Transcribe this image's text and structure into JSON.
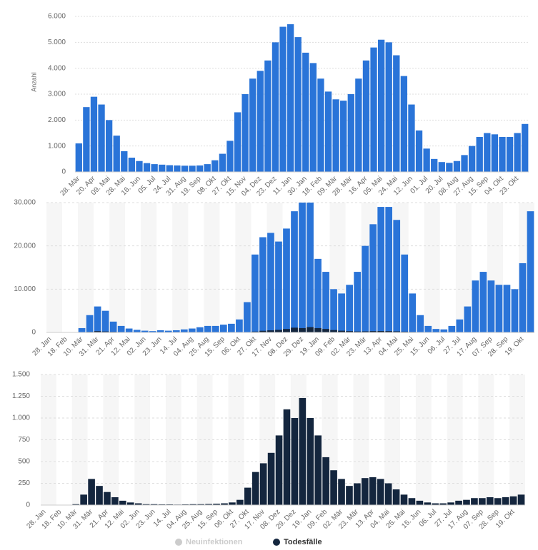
{
  "chart_data": [
    {
      "type": "bar",
      "ylabel": "Anzahl",
      "color": "#2a74d8",
      "grid": true,
      "categories": [
        "28. Mär",
        null,
        "20. Apr",
        null,
        "09. Mai",
        null,
        "28. Mai",
        null,
        "16. Jun",
        null,
        "05. Jul",
        null,
        "24. Jul",
        null,
        "31. Aug",
        null,
        "19. Sep",
        null,
        "08. Okt",
        null,
        "27. Okt",
        null,
        "15. Nov",
        null,
        "04. Dez",
        null,
        "23. Dez",
        null,
        "11. Jan",
        null,
        "30. Jan",
        null,
        "18. Feb",
        null,
        "09. Mär",
        null,
        "28. Mär",
        null,
        "16. Apr",
        null,
        "05. Mai",
        null,
        "24. Mai",
        null,
        "12. Jun",
        null,
        "01. Jul",
        null,
        "20. Jul",
        null,
        "08. Aug",
        null,
        "27. Aug",
        null,
        "15. Sep",
        null,
        "04. Okt",
        null,
        "23. Okt",
        null
      ],
      "values": [
        1100,
        2500,
        2900,
        2600,
        2000,
        1400,
        800,
        550,
        420,
        340,
        300,
        280,
        260,
        250,
        240,
        240,
        250,
        300,
        450,
        700,
        1200,
        2300,
        3000,
        3600,
        3900,
        4300,
        5000,
        5600,
        5700,
        5200,
        4600,
        4200,
        3600,
        3100,
        2800,
        2750,
        3000,
        3600,
        4300,
        4800,
        5100,
        5000,
        4500,
        3700,
        2600,
        1600,
        900,
        500,
        380,
        350,
        420,
        650,
        1000,
        1350,
        1500,
        1450,
        1350,
        1350,
        1500,
        1850
      ],
      "ylim": [
        0,
        6000
      ],
      "yticks": [
        0,
        {
          "value": 1000,
          "label": "1.000"
        },
        {
          "value": 2000,
          "label": "2.000"
        },
        {
          "value": 3000,
          "label": "3.000"
        },
        {
          "value": 4000,
          "label": "4.000"
        },
        {
          "value": 5000,
          "label": "5.000"
        },
        {
          "value": 6000,
          "label": "6.000"
        }
      ]
    },
    {
      "type": "bar",
      "grid": true,
      "categories": [
        "28. Jan",
        null,
        "18. Feb",
        null,
        "10. Mär",
        null,
        "31. Mär",
        null,
        "21. Apr",
        null,
        "12. Mai",
        null,
        "02. Jun",
        null,
        "23. Jun",
        null,
        "14. Jul",
        null,
        "04. Aug",
        null,
        "25. Aug",
        null,
        "15. Sep",
        null,
        "06. Okt",
        null,
        "27. Okt",
        null,
        "17. Nov",
        null,
        "08. Dez",
        null,
        "29. Dez",
        null,
        "19. Jan",
        null,
        "09. Feb",
        null,
        "02. Mär",
        null,
        "23. Mär",
        null,
        "13. Apr",
        null,
        "04. Mai",
        null,
        "25. Mai",
        null,
        "15. Jun",
        null,
        "06. Jul",
        null,
        "27. Jul",
        null,
        "17. Aug",
        null,
        "07. Sep",
        null,
        "28. Sep",
        null,
        "19. Okt",
        null
      ],
      "series": [
        {
          "name": "Neuinfektionen",
          "color": "#2a74d8",
          "values": [
            0,
            0,
            0,
            50,
            1000,
            4000,
            6000,
            5000,
            2500,
            1500,
            900,
            600,
            400,
            300,
            500,
            400,
            500,
            700,
            900,
            1200,
            1500,
            1500,
            1800,
            2000,
            3000,
            7000,
            18000,
            22000,
            23000,
            21000,
            24000,
            28000,
            30000,
            30000,
            17000,
            14000,
            10000,
            9000,
            11000,
            14000,
            20000,
            25000,
            29000,
            29000,
            26000,
            18000,
            9000,
            4000,
            1500,
            800,
            700,
            1500,
            3000,
            6000,
            12000,
            14000,
            12000,
            11000,
            11000,
            10000,
            16000,
            28000
          ]
        },
        {
          "name": "Todesfälle",
          "color": "#14263e",
          "values": [
            0,
            0,
            0,
            0,
            10,
            120,
            300,
            220,
            150,
            90,
            50,
            30,
            20,
            10,
            10,
            8,
            8,
            6,
            8,
            10,
            10,
            12,
            15,
            20,
            30,
            60,
            200,
            380,
            480,
            600,
            800,
            1100,
            1000,
            1230,
            1000,
            800,
            550,
            400,
            300,
            220,
            250,
            310,
            320,
            300,
            250,
            180,
            120,
            80,
            50,
            30,
            20,
            20,
            30,
            50,
            60,
            80,
            80,
            90,
            80,
            90,
            100,
            120
          ]
        }
      ],
      "ylim": [
        0,
        30000
      ],
      "yticks": [
        0,
        {
          "value": 10000,
          "label": "10.000"
        },
        {
          "value": 20000,
          "label": "20.000"
        },
        {
          "value": 30000,
          "label": "30.000"
        }
      ]
    },
    {
      "type": "bar",
      "grid": true,
      "categories": [
        "28. Jan",
        null,
        "18. Feb",
        null,
        "10. Mär",
        null,
        "31. Mär",
        null,
        "21. Apr",
        null,
        "12. Mai",
        null,
        "02. Jun",
        null,
        "23. Jun",
        null,
        "14. Jul",
        null,
        "04. Aug",
        null,
        "25. Aug",
        null,
        "15. Sep",
        null,
        "06. Okt",
        null,
        "27. Okt",
        null,
        "17. Nov",
        null,
        "08. Dez",
        null,
        "29. Dez",
        null,
        "19. Jan",
        null,
        "09. Feb",
        null,
        "02. Mär",
        null,
        "23. Mär",
        null,
        "13. Apr",
        null,
        "04. Mai",
        null,
        "25. Mai",
        null,
        "15. Jun",
        null,
        "06. Jul",
        null,
        "27. Jul",
        null,
        "17. Aug",
        null,
        "07. Sep",
        null,
        "28. Sep",
        null,
        "19. Okt",
        null
      ],
      "series": [
        {
          "name": "Todesfälle",
          "color": "#14263e",
          "values": [
            0,
            0,
            0,
            0,
            10,
            120,
            300,
            220,
            150,
            90,
            50,
            30,
            20,
            10,
            10,
            8,
            8,
            6,
            8,
            10,
            10,
            12,
            15,
            20,
            30,
            60,
            200,
            380,
            480,
            600,
            800,
            1100,
            1000,
            1230,
            1000,
            800,
            550,
            400,
            300,
            220,
            250,
            310,
            320,
            300,
            250,
            180,
            120,
            80,
            50,
            30,
            20,
            20,
            30,
            50,
            60,
            80,
            80,
            90,
            80,
            90,
            100,
            120
          ]
        }
      ],
      "legend_items": [
        {
          "name": "Neuinfektionen",
          "color": "#cccccc"
        },
        {
          "name": "Todesfälle",
          "color": "#14263e"
        }
      ],
      "ylim": [
        0,
        1500
      ],
      "yticks": [
        0,
        250,
        500,
        750,
        {
          "value": 1000,
          "label": "1.000"
        },
        {
          "value": 1250,
          "label": "1.250"
        },
        {
          "value": 1500,
          "label": "1.500"
        }
      ]
    }
  ]
}
